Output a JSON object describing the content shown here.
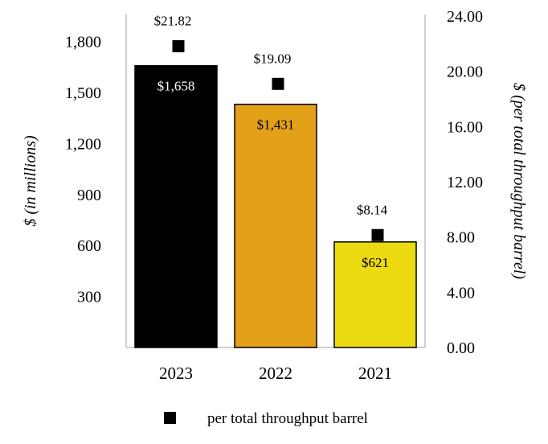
{
  "chart_data": {
    "type": "bar",
    "categories": [
      "2023",
      "2022",
      "2021"
    ],
    "series": [
      {
        "values": [
          1658,
          1431,
          621
        ],
        "value_labels": [
          "$1,658",
          "$1,431",
          "$621"
        ],
        "colors": [
          "#000000",
          "#E3A019",
          "#EDDB12"
        ],
        "label_colors": [
          "#ffffff",
          "#000000",
          "#000000"
        ],
        "axis": "left"
      },
      {
        "name": "per total throughput barrel",
        "values": [
          21.82,
          19.09,
          8.14
        ],
        "value_labels": [
          "$21.82",
          "$19.09",
          "$8.14"
        ],
        "marker": "square",
        "color": "#000000",
        "axis": "right"
      }
    ],
    "ylabel": "$ (in millions)",
    "y2label": "$ (per total throughput barrel)",
    "ylim": [
      0,
      1950
    ],
    "yticks": [
      "300",
      "600",
      "900",
      "1,200",
      "1,500",
      "1,800"
    ],
    "yticks_values": [
      300,
      600,
      900,
      1200,
      1500,
      1800
    ],
    "y2lim": [
      0,
      24
    ],
    "y2ticks": [
      "0.00",
      "4.00",
      "8.00",
      "12.00",
      "16.00",
      "20.00",
      "24.00"
    ],
    "y2ticks_values": [
      0,
      4,
      8,
      12,
      16,
      20,
      24
    ],
    "grid": false,
    "legend": {
      "position": "bottom",
      "entries": [
        "per total throughput barrel"
      ]
    }
  }
}
